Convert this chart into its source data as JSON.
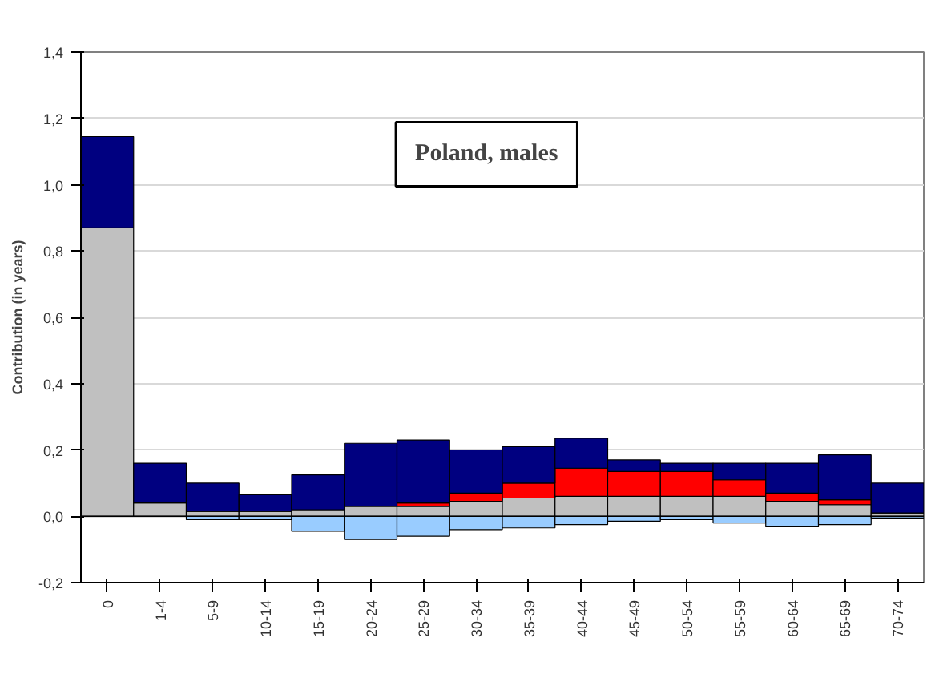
{
  "chart_data": {
    "type": "bar",
    "stacked": true,
    "ylabel": "Contribution (in years)",
    "annotations": [
      "Poland, males"
    ],
    "categories": [
      "0",
      "1-4",
      "5-9",
      "10-14",
      "15-19",
      "20-24",
      "25-29",
      "30-34",
      "35-39",
      "40-44",
      "45-49",
      "50-54",
      "55-59",
      "60-64",
      "65-69",
      "70-74"
    ],
    "series": [
      {
        "color": "#99ccff",
        "values": [
          0,
          0,
          -0.01,
          -0.01,
          -0.045,
          -0.07,
          -0.06,
          -0.04,
          -0.035,
          -0.025,
          -0.015,
          -0.01,
          -0.02,
          -0.03,
          -0.025,
          -0.005
        ]
      },
      {
        "color": "#c0c0c0",
        "values": [
          0.87,
          0.04,
          0.015,
          0.015,
          0.02,
          0.03,
          0.03,
          0.045,
          0.055,
          0.06,
          0.06,
          0.06,
          0.06,
          0.045,
          0.035,
          0.01
        ]
      },
      {
        "color": "#ff0000",
        "values": [
          0,
          0,
          0,
          0,
          0,
          0,
          0.01,
          0.025,
          0.045,
          0.085,
          0.075,
          0.075,
          0.05,
          0.025,
          0.015,
          0
        ]
      },
      {
        "color": "#000080",
        "values": [
          0.275,
          0.12,
          0.085,
          0.05,
          0.105,
          0.19,
          0.19,
          0.13,
          0.11,
          0.09,
          0.035,
          0.025,
          0.05,
          0.09,
          0.135,
          0.09
        ]
      }
    ],
    "ylim": [
      -0.2,
      1.4
    ],
    "yticks": [
      {
        "value": -0.2,
        "label": "-0,2"
      },
      {
        "value": 0,
        "label": "0,0"
      },
      {
        "value": 0.2,
        "label": "0,2"
      },
      {
        "value": 0.4,
        "label": "0,4"
      },
      {
        "value": 0.6,
        "label": "0,6"
      },
      {
        "value": 0.8,
        "label": "0,8"
      },
      {
        "value": 1.0,
        "label": "1,0"
      },
      {
        "value": 1.2,
        "label": "1,2"
      },
      {
        "value": 1.4,
        "label": "1,4"
      }
    ],
    "grid": "y"
  }
}
